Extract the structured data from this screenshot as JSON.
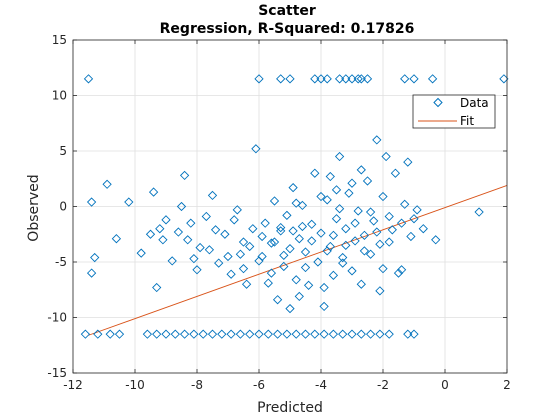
{
  "chart_data": {
    "type": "scatter",
    "title": "Scatter",
    "subtitle": "Regression, R-Squared: 0.17826",
    "xlabel": "Predicted",
    "ylabel": "Observed",
    "xlim": [
      -12,
      2
    ],
    "ylim": [
      -15,
      15
    ],
    "xticks": [
      "-12",
      "-10",
      "-8",
      "-6",
      "-4",
      "-2",
      "0",
      "2"
    ],
    "yticks": [
      "-15",
      "-10",
      "-5",
      "0",
      "5",
      "10",
      "15"
    ],
    "grid": true,
    "legend_position": "top-right",
    "legend": [
      "Data",
      "Fit"
    ],
    "colors": {
      "data": "#0072BD",
      "fit": "#D95319",
      "grid": "#DFDFDF",
      "axis": "#262626"
    },
    "series": [
      {
        "name": "Data",
        "marker": "diamond",
        "points": [
          [
            -11.5,
            11.5
          ],
          [
            -6.0,
            11.5
          ],
          [
            -5.3,
            11.5
          ],
          [
            -5.0,
            11.5
          ],
          [
            -4.2,
            11.5
          ],
          [
            -4.0,
            11.5
          ],
          [
            -3.8,
            11.5
          ],
          [
            -3.4,
            11.5
          ],
          [
            -3.2,
            11.5
          ],
          [
            -3.0,
            11.5
          ],
          [
            -2.8,
            11.5
          ],
          [
            -2.7,
            11.5
          ],
          [
            -2.5,
            11.5
          ],
          [
            -1.3,
            11.5
          ],
          [
            -1.0,
            11.5
          ],
          [
            -0.4,
            11.5
          ],
          [
            1.9,
            11.5
          ],
          [
            -11.4,
            0.4
          ],
          [
            -11.3,
            -4.6
          ],
          [
            -11.4,
            -6.0
          ],
          [
            -10.9,
            2.0
          ],
          [
            -10.6,
            -2.9
          ],
          [
            -10.5,
            -11.5
          ],
          [
            -10.2,
            0.4
          ],
          [
            -9.8,
            -4.2
          ],
          [
            -9.5,
            -2.5
          ],
          [
            -9.2,
            -2.0
          ],
          [
            -9.0,
            -1.2
          ],
          [
            -9.4,
            1.3
          ],
          [
            -9.1,
            -3.0
          ],
          [
            -9.3,
            -7.3
          ],
          [
            -8.8,
            -4.9
          ],
          [
            -8.6,
            -2.3
          ],
          [
            -8.5,
            0.0
          ],
          [
            -8.4,
            2.8
          ],
          [
            -8.2,
            -1.5
          ],
          [
            -8.0,
            -5.7
          ],
          [
            -7.9,
            -3.7
          ],
          [
            -7.7,
            -0.9
          ],
          [
            -7.5,
            1.0
          ],
          [
            -7.3,
            -5.1
          ],
          [
            -7.1,
            -2.5
          ],
          [
            -6.9,
            -6.1
          ],
          [
            -6.8,
            -1.2
          ],
          [
            -6.6,
            -4.3
          ],
          [
            -6.5,
            -3.2
          ],
          [
            -6.4,
            -7.0
          ],
          [
            -6.2,
            -2.0
          ],
          [
            -6.1,
            5.2
          ],
          [
            -5.9,
            -4.5
          ],
          [
            -5.8,
            -1.5
          ],
          [
            -5.7,
            -6.9
          ],
          [
            -5.6,
            -3.3
          ],
          [
            -5.5,
            0.5
          ],
          [
            -5.4,
            -8.4
          ],
          [
            -5.3,
            -2.2
          ],
          [
            -5.2,
            -5.4
          ],
          [
            -5.1,
            -0.8
          ],
          [
            -5.0,
            -3.8
          ],
          [
            -4.9,
            1.7
          ],
          [
            -4.8,
            -6.6
          ],
          [
            -4.7,
            -2.9
          ],
          [
            -4.6,
            0.1
          ],
          [
            -4.5,
            -4.1
          ],
          [
            -4.4,
            -7.1
          ],
          [
            -4.3,
            -1.6
          ],
          [
            -4.2,
            3.0
          ],
          [
            -4.1,
            -5.0
          ],
          [
            -4.0,
            -2.4
          ],
          [
            -3.9,
            -9.0
          ],
          [
            -3.8,
            0.6
          ],
          [
            -3.7,
            -3.6
          ],
          [
            -3.6,
            -6.2
          ],
          [
            -3.5,
            -1.1
          ],
          [
            -3.4,
            4.5
          ],
          [
            -3.3,
            -4.6
          ],
          [
            -3.2,
            -2.0
          ],
          [
            -3.1,
            1.2
          ],
          [
            -3.0,
            -5.8
          ],
          [
            -2.9,
            -3.1
          ],
          [
            -2.8,
            -0.4
          ],
          [
            -2.7,
            -7.0
          ],
          [
            -2.6,
            -2.6
          ],
          [
            -2.5,
            2.3
          ],
          [
            -2.4,
            -4.3
          ],
          [
            -2.3,
            -1.3
          ],
          [
            -2.2,
            6.0
          ],
          [
            -2.1,
            -3.4
          ],
          [
            -2.0,
            -5.6
          ],
          [
            -1.9,
            4.5
          ],
          [
            -1.8,
            -0.9
          ],
          [
            -1.7,
            -2.1
          ],
          [
            -1.6,
            3.0
          ],
          [
            -1.5,
            -6.0
          ],
          [
            -1.4,
            -1.5
          ],
          [
            -1.3,
            0.2
          ],
          [
            -1.2,
            4.0
          ],
          [
            -1.1,
            -2.7
          ],
          [
            -1.0,
            -1.1
          ],
          [
            -0.9,
            -0.3
          ],
          [
            -0.7,
            -2.0
          ],
          [
            -0.3,
            -3.0
          ],
          [
            1.1,
            -0.5
          ],
          [
            -5.0,
            -9.2
          ],
          [
            -4.7,
            -8.1
          ],
          [
            -3.9,
            -7.3
          ],
          [
            -2.1,
            -7.6
          ],
          [
            -1.4,
            -5.7
          ],
          [
            -1.8,
            -3.2
          ],
          [
            -4.6,
            -1.8
          ],
          [
            -3.6,
            -2.6
          ],
          [
            -3.2,
            -3.5
          ],
          [
            -2.9,
            -1.5
          ],
          [
            -4.3,
            -3.1
          ],
          [
            -3.8,
            -4.0
          ],
          [
            -5.3,
            -1.9
          ],
          [
            -6.3,
            -3.6
          ],
          [
            -7.0,
            -4.5
          ],
          [
            -7.6,
            -3.9
          ],
          [
            -8.1,
            -4.7
          ],
          [
            -6.7,
            -0.3
          ],
          [
            -5.9,
            -2.7
          ],
          [
            -6.0,
            -4.9
          ],
          [
            -5.6,
            -6.0
          ],
          [
            -3.3,
            -5.1
          ],
          [
            -2.4,
            -0.5
          ],
          [
            -2.0,
            0.9
          ],
          [
            -3.0,
            2.1
          ],
          [
            -4.0,
            0.9
          ],
          [
            -4.8,
            0.3
          ],
          [
            -3.5,
            1.5
          ],
          [
            -2.7,
            3.3
          ],
          [
            -3.7,
            2.7
          ],
          [
            -4.5,
            -5.5
          ],
          [
            -5.2,
            -4.4
          ],
          [
            -6.5,
            -5.6
          ],
          [
            -7.4,
            -2.1
          ],
          [
            -8.3,
            -3.0
          ],
          [
            -2.2,
            -2.3
          ],
          [
            -2.6,
            -4.0
          ],
          [
            -3.4,
            -0.2
          ],
          [
            -4.9,
            -2.2
          ],
          [
            -5.5,
            -3.2
          ],
          [
            -11.6,
            -11.5
          ],
          [
            -11.2,
            -11.5
          ],
          [
            -10.8,
            -11.5
          ],
          [
            -9.6,
            -11.5
          ],
          [
            -9.3,
            -11.5
          ],
          [
            -9.0,
            -11.5
          ],
          [
            -8.7,
            -11.5
          ],
          [
            -8.4,
            -11.5
          ],
          [
            -8.1,
            -11.5
          ],
          [
            -7.8,
            -11.5
          ],
          [
            -7.5,
            -11.5
          ],
          [
            -7.2,
            -11.5
          ],
          [
            -6.9,
            -11.5
          ],
          [
            -6.6,
            -11.5
          ],
          [
            -6.3,
            -11.5
          ],
          [
            -6.0,
            -11.5
          ],
          [
            -5.7,
            -11.5
          ],
          [
            -5.4,
            -11.5
          ],
          [
            -5.1,
            -11.5
          ],
          [
            -4.8,
            -11.5
          ],
          [
            -4.5,
            -11.5
          ],
          [
            -4.2,
            -11.5
          ],
          [
            -3.9,
            -11.5
          ],
          [
            -3.6,
            -11.5
          ],
          [
            -3.3,
            -11.5
          ],
          [
            -3.0,
            -11.5
          ],
          [
            -2.7,
            -11.5
          ],
          [
            -2.4,
            -11.5
          ],
          [
            -2.1,
            -11.5
          ],
          [
            -1.8,
            -11.5
          ],
          [
            -1.2,
            -11.5
          ],
          [
            -1.0,
            -11.5
          ]
        ]
      },
      {
        "name": "Fit",
        "line": [
          [
            -11.5,
            -11.6
          ],
          [
            2.0,
            1.9
          ]
        ]
      }
    ]
  }
}
